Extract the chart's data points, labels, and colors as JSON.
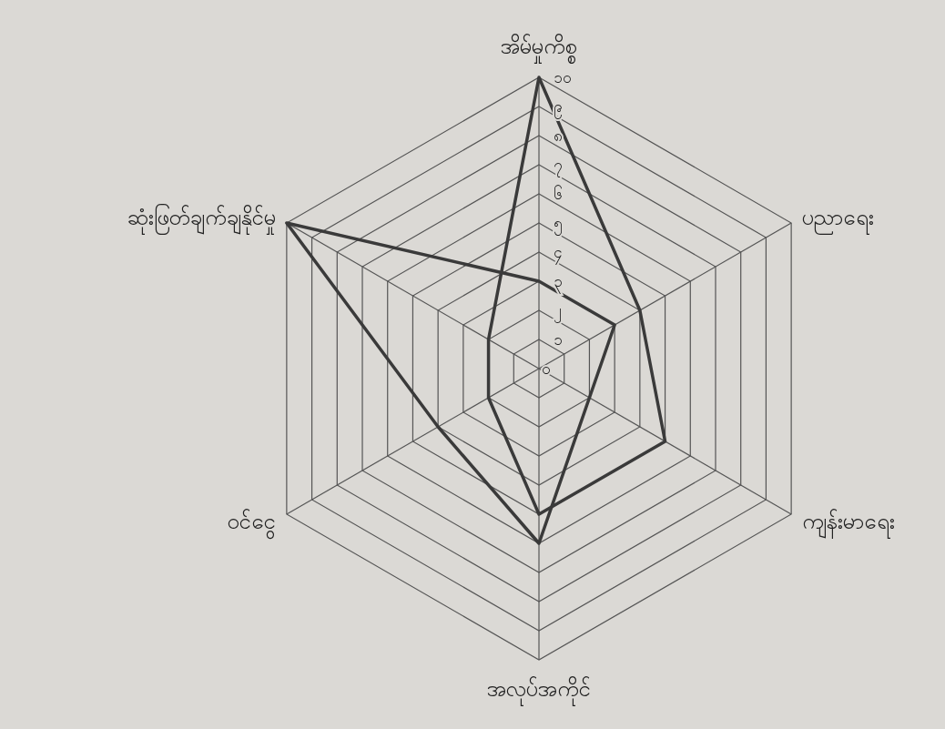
{
  "chart_data": {
    "type": "radar",
    "categories": [
      "အိမ်မှုကိစ္စ",
      "ပညာရေး",
      "ကျန်းမာရေး",
      "အလုပ်အကိုင်",
      "ဝင်ငွေ",
      "ဆုံးဖြတ်ချက်ချနိုင်မှု"
    ],
    "series": [
      {
        "color": "#3a3a3a",
        "values": [
          10,
          4,
          5,
          5,
          2,
          2
        ]
      },
      {
        "color": "#3a3a3a",
        "values": [
          3,
          3,
          2,
          6,
          4,
          10
        ]
      }
    ],
    "ylim": [
      0,
      10
    ],
    "yticks": [
      {
        "value": 0,
        "label": "၀"
      },
      {
        "value": 1,
        "label": "၁"
      },
      {
        "value": 2,
        "label": "၂"
      },
      {
        "value": 3,
        "label": "၃"
      },
      {
        "value": 4,
        "label": "၄"
      },
      {
        "value": 5,
        "label": "၅"
      },
      {
        "value": 6,
        "label": "၆"
      },
      {
        "value": 7,
        "label": "၇"
      },
      {
        "value": 8,
        "label": "၈"
      },
      {
        "value": 9,
        "label": "၉"
      },
      {
        "value": 10,
        "label": "၁၀"
      }
    ],
    "grid": true
  }
}
